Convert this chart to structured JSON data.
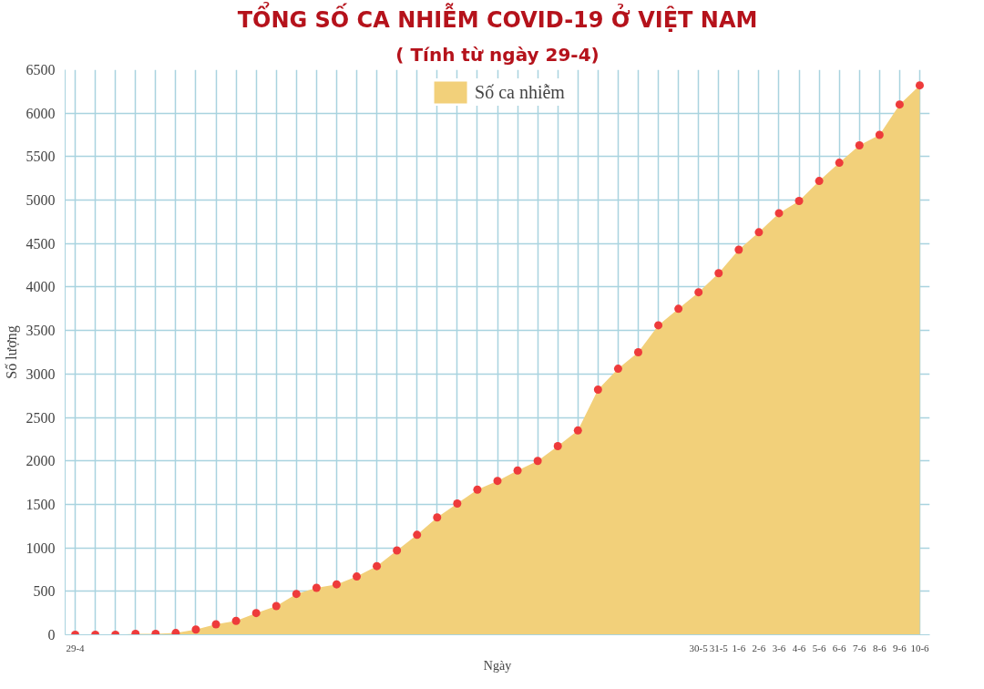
{
  "chart_data": {
    "type": "area",
    "title": "TỔNG SỐ CA NHIỄM COVID-19 Ở VIỆT NAM",
    "subtitle": "( Tính từ ngày 29-4)",
    "ylabel": "Số lượng",
    "xlabel": "Ngày",
    "categories": [
      "29-4",
      null,
      null,
      null,
      null,
      null,
      null,
      null,
      null,
      null,
      null,
      null,
      null,
      null,
      null,
      null,
      null,
      null,
      null,
      null,
      null,
      null,
      null,
      null,
      null,
      null,
      null,
      null,
      null,
      null,
      null,
      "30-5",
      "31-5",
      "1-6",
      "2-6",
      "3-6",
      "4-6",
      "5-6",
      "6-6",
      "7-6",
      "8-6",
      "9-6",
      "10-6"
    ],
    "series": [
      {
        "name": "Số ca nhiễm",
        "color": "#f2d07a",
        "marker": "none",
        "values": [
          0,
          0,
          0,
          10,
          10,
          20,
          60,
          120,
          160,
          250,
          330,
          470,
          540,
          580,
          670,
          790,
          970,
          1150,
          1350,
          1510,
          1670,
          1770,
          1890,
          2000,
          2170,
          2350,
          2820,
          3060,
          3250,
          3560,
          3750,
          3940,
          4160,
          4430,
          4630,
          4850,
          4990,
          5220,
          5430,
          5630,
          5750,
          6100,
          6320
        ]
      },
      {
        "type": "scatter",
        "color": "#ee3b3b",
        "marker": "circle",
        "values": [
          0,
          0,
          0,
          10,
          10,
          20,
          60,
          120,
          160,
          250,
          330,
          470,
          540,
          580,
          670,
          790,
          970,
          1150,
          1350,
          1510,
          1670,
          1770,
          1890,
          2000,
          2170,
          2350,
          2820,
          3060,
          3250,
          3560,
          3750,
          3940,
          4160,
          4430,
          4630,
          4850,
          4990,
          5220,
          5430,
          5630,
          5750,
          6100,
          6320
        ]
      }
    ],
    "ylim": [
      0,
      6500
    ],
    "yticks": [
      0,
      500,
      1000,
      1500,
      2000,
      2500,
      3000,
      3500,
      4000,
      4500,
      5000,
      5500,
      6000,
      6500
    ],
    "grid": true,
    "legend": "top"
  }
}
